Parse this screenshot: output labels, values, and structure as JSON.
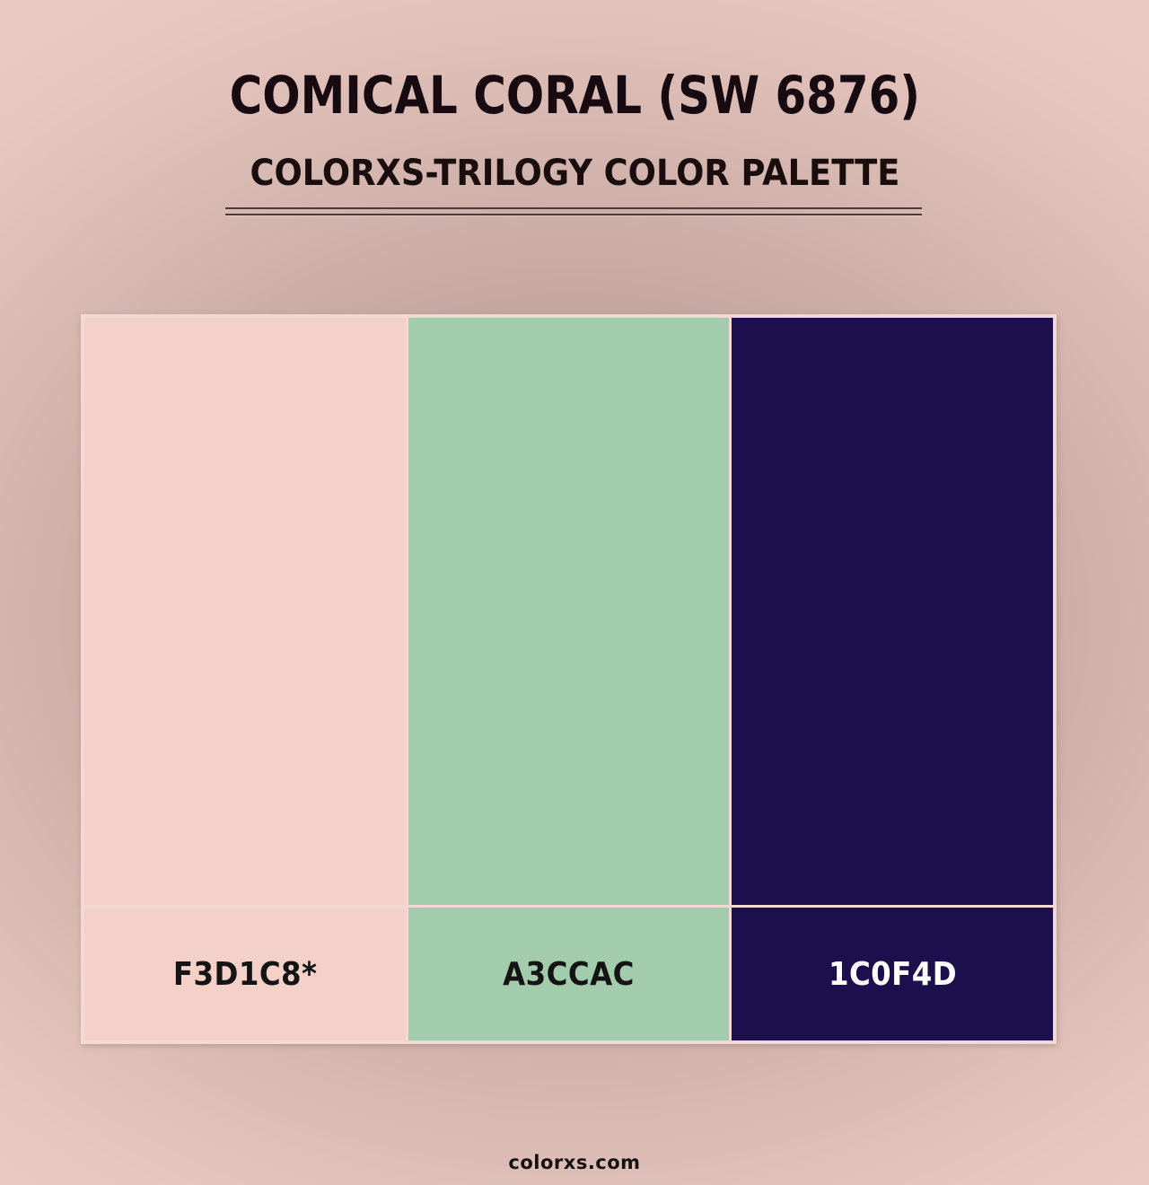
{
  "header": {
    "title": "COMICAL CORAL (SW 6876)",
    "subtitle": "COLORXS-TRILOGY COLOR PALETTE"
  },
  "palette": {
    "frame_color": "#F2D9D3",
    "swatches": [
      {
        "hex": "#F3D1C8",
        "label": "F3D1C8*",
        "label_color": "#141414"
      },
      {
        "hex": "#A3CCAC",
        "label": "A3CCAC",
        "label_color": "#141414"
      },
      {
        "hex": "#1C0F4D",
        "label": "1C0F4D",
        "label_color": "#FFFFFF"
      }
    ]
  },
  "footer": {
    "watermark": "colorxs.com"
  },
  "colors": {
    "title_text": "#170A10",
    "subtitle_text": "#1A0D0D",
    "divider": "#4A3B3B",
    "background_center": "#B3948E",
    "background_edge": "#E9C9C1"
  }
}
